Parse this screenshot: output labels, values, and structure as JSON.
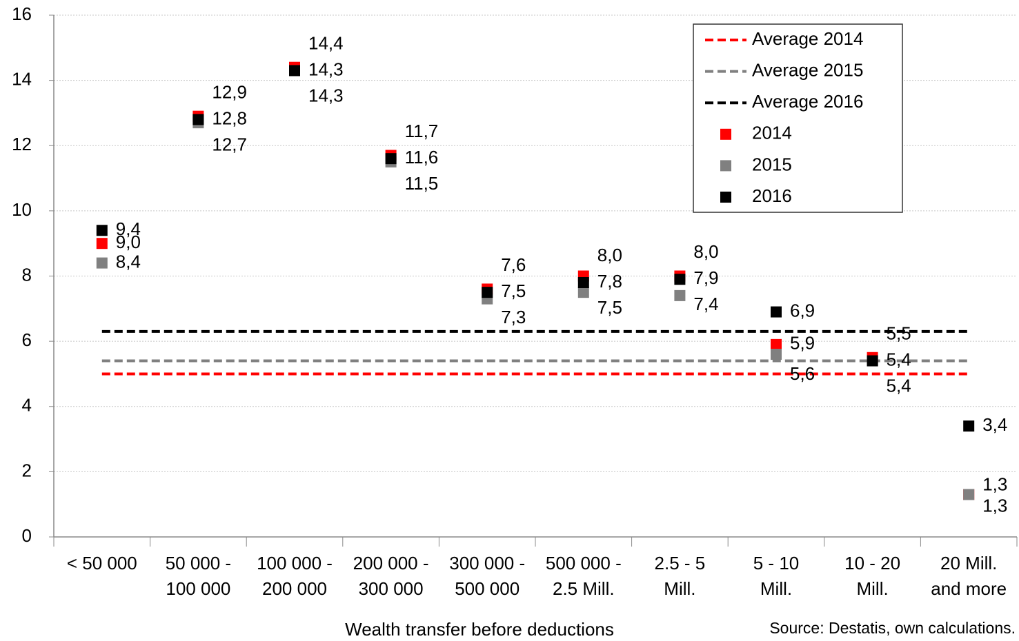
{
  "chart_data": {
    "type": "scatter",
    "x_label": "Wealth transfer before deductions",
    "source": "Source: Destatis, own calculations.",
    "categories": [
      [
        "< 50 000"
      ],
      [
        "50 000 -",
        "100 000"
      ],
      [
        "100 000 -",
        "200 000"
      ],
      [
        "200 000 -",
        "300 000"
      ],
      [
        "300 000 -",
        "500 000"
      ],
      [
        "500 000 -",
        "2.5 Mill."
      ],
      [
        "2.5 - 5",
        "Mill."
      ],
      [
        "5 - 10",
        "Mill."
      ],
      [
        "10 - 20",
        "Mill."
      ],
      [
        "20 Mill.",
        "and more"
      ]
    ],
    "ylim": [
      0,
      16
    ],
    "yticks": [
      0,
      2,
      4,
      6,
      8,
      10,
      12,
      14,
      16
    ],
    "grid": true,
    "averages": [
      {
        "name": "Average 2014",
        "color": "#ff0000",
        "value": 5.0
      },
      {
        "name": "Average 2015",
        "color": "#808080",
        "value": 5.4
      },
      {
        "name": "Average 2016",
        "color": "#000000",
        "value": 6.3
      }
    ],
    "series": [
      {
        "name": "2014",
        "color": "#ff0000",
        "values": [
          9.0,
          12.9,
          14.4,
          11.7,
          7.6,
          8.0,
          8.0,
          5.9,
          5.5,
          1.3
        ],
        "value_labels": [
          "9,0",
          "12,9",
          "14,4",
          "11,7",
          "7,6",
          "8,0",
          "8,0",
          "5,9",
          "5,5",
          "1,3"
        ]
      },
      {
        "name": "2015",
        "color": "#808080",
        "values": [
          8.4,
          12.7,
          14.3,
          11.5,
          7.3,
          7.5,
          7.4,
          5.6,
          5.4,
          1.3
        ],
        "value_labels": [
          "8,4",
          "12,7",
          "14,3",
          "11,5",
          "7,3",
          "7,5",
          "7,4",
          "5,6",
          "5,4",
          "1,3"
        ]
      },
      {
        "name": "2016",
        "color": "#000000",
        "values": [
          9.4,
          12.8,
          14.3,
          11.6,
          7.5,
          7.8,
          7.9,
          6.9,
          5.4,
          3.4
        ],
        "value_labels": [
          "9,4",
          "12,8",
          "14,3",
          "11,6",
          "7,5",
          "7,8",
          "7,9",
          "6,9",
          "5,4",
          "3,4"
        ]
      }
    ]
  }
}
